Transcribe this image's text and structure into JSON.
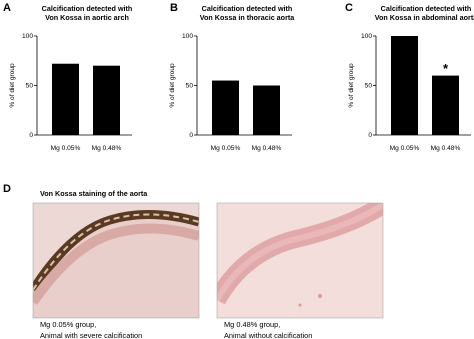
{
  "chart_data": [
    {
      "type": "bar",
      "panel": "A",
      "title": [
        "Calcification detected with",
        "Von Kossa in aortic arch"
      ],
      "ylabel": "% of diet group",
      "categories": [
        "Mg 0.05%",
        "Mg 0.48%"
      ],
      "values": [
        72,
        70
      ],
      "color": "#000000",
      "ylim": [
        0,
        100
      ],
      "yticks": [
        0,
        50,
        100
      ]
    },
    {
      "type": "bar",
      "panel": "B",
      "title": [
        "Calcification detected with",
        "Von Kossa in thoracic aorta"
      ],
      "ylabel": "% of diet group",
      "categories": [
        "Mg 0.05%",
        "Mg 0.48%"
      ],
      "values": [
        55,
        50
      ],
      "color": "#000000",
      "ylim": [
        0,
        100
      ],
      "yticks": [
        0,
        50,
        100
      ]
    },
    {
      "type": "bar",
      "panel": "C",
      "title": [
        "Calcification detected with",
        "Von Kossa in abdominal aorta"
      ],
      "ylabel": "% of diet group",
      "categories": [
        "Mg 0.05%",
        "Mg 0.48%"
      ],
      "values": [
        100,
        60
      ],
      "color": "#000000",
      "ylim": [
        0,
        100
      ],
      "yticks": [
        0,
        50,
        100
      ],
      "annotations": [
        {
          "text": "*",
          "category": "Mg 0.48%"
        }
      ]
    }
  ],
  "panel_d": {
    "label": "D",
    "title": "Von Kossa staining of the aorta",
    "captions": [
      [
        "Mg 0.05% group,",
        "Animal with severe calcification"
      ],
      [
        "Mg 0.48% group,",
        "Animal without calcification"
      ]
    ]
  }
}
